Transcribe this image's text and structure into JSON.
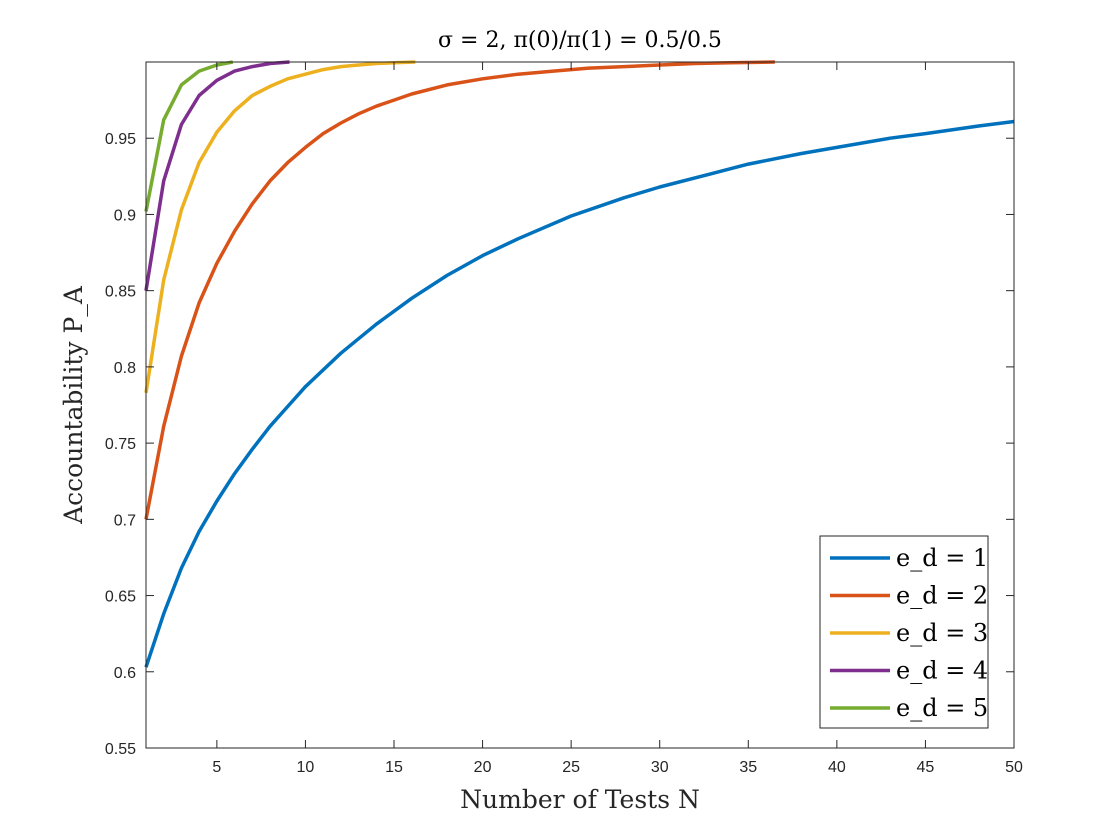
{
  "chart_data": {
    "type": "line",
    "title": "σ = 2, π(0)/π(1) = 0.5/0.5",
    "xlabel": "Number of Tests N",
    "ylabel": "Accountability P_A",
    "xlim": [
      1,
      50
    ],
    "ylim": [
      0.55,
      1.0
    ],
    "grid": false,
    "legend_position": "bottom-right",
    "x_ticks": [
      5,
      10,
      15,
      20,
      25,
      30,
      35,
      40,
      45,
      50
    ],
    "y_ticks": [
      0.55,
      0.6,
      0.65,
      0.7,
      0.75,
      0.8,
      0.85,
      0.9,
      0.95
    ],
    "x_tick_labels": [
      "5",
      "10",
      "15",
      "20",
      "25",
      "30",
      "35",
      "40",
      "45",
      "50"
    ],
    "y_tick_labels": [
      "0.55",
      "0.6",
      "0.65",
      "0.7",
      "0.75",
      "0.8",
      "0.85",
      "0.9",
      "0.95"
    ],
    "series": [
      {
        "name": "e_d = 1",
        "color": "#0072BD",
        "x": [
          1,
          2,
          3,
          4,
          5,
          6,
          7,
          8,
          9,
          10,
          12,
          14,
          16,
          18,
          20,
          22,
          25,
          28,
          30,
          33,
          35,
          38,
          40,
          43,
          45,
          48,
          50
        ],
        "y": [
          0.603,
          0.638,
          0.668,
          0.692,
          0.712,
          0.73,
          0.746,
          0.761,
          0.774,
          0.787,
          0.809,
          0.828,
          0.845,
          0.86,
          0.873,
          0.884,
          0.899,
          0.911,
          0.918,
          0.927,
          0.933,
          0.94,
          0.944,
          0.95,
          0.953,
          0.958,
          0.961
        ]
      },
      {
        "name": "e_d = 2",
        "color": "#D95319",
        "x": [
          1,
          2,
          3,
          4,
          5,
          6,
          7,
          8,
          9,
          10,
          11,
          12,
          13,
          14,
          15,
          16,
          18,
          20,
          22,
          24,
          26,
          28,
          30,
          32,
          34,
          36.5
        ],
        "y": [
          0.7,
          0.761,
          0.807,
          0.842,
          0.868,
          0.889,
          0.907,
          0.922,
          0.934,
          0.944,
          0.953,
          0.96,
          0.966,
          0.971,
          0.975,
          0.979,
          0.985,
          0.989,
          0.992,
          0.994,
          0.996,
          0.997,
          0.998,
          0.999,
          0.9995,
          1.0
        ]
      },
      {
        "name": "e_d = 3",
        "color": "#EDB120",
        "x": [
          1,
          2,
          3,
          4,
          5,
          6,
          7,
          8,
          9,
          10,
          11,
          12,
          13,
          14,
          15,
          16.2
        ],
        "y": [
          0.783,
          0.857,
          0.903,
          0.934,
          0.954,
          0.968,
          0.978,
          0.984,
          0.989,
          0.992,
          0.995,
          0.997,
          0.998,
          0.999,
          0.9995,
          1.0
        ]
      },
      {
        "name": "e_d = 4",
        "color": "#7E2F8E",
        "x": [
          1,
          2,
          3,
          4,
          5,
          6,
          7,
          8,
          9.1
        ],
        "y": [
          0.85,
          0.922,
          0.959,
          0.978,
          0.988,
          0.994,
          0.997,
          0.999,
          1.0
        ]
      },
      {
        "name": "e_d = 5",
        "color": "#77AC30",
        "x": [
          1,
          2,
          3,
          4,
          5,
          5.9
        ],
        "y": [
          0.902,
          0.962,
          0.985,
          0.994,
          0.998,
          1.0
        ]
      }
    ]
  }
}
